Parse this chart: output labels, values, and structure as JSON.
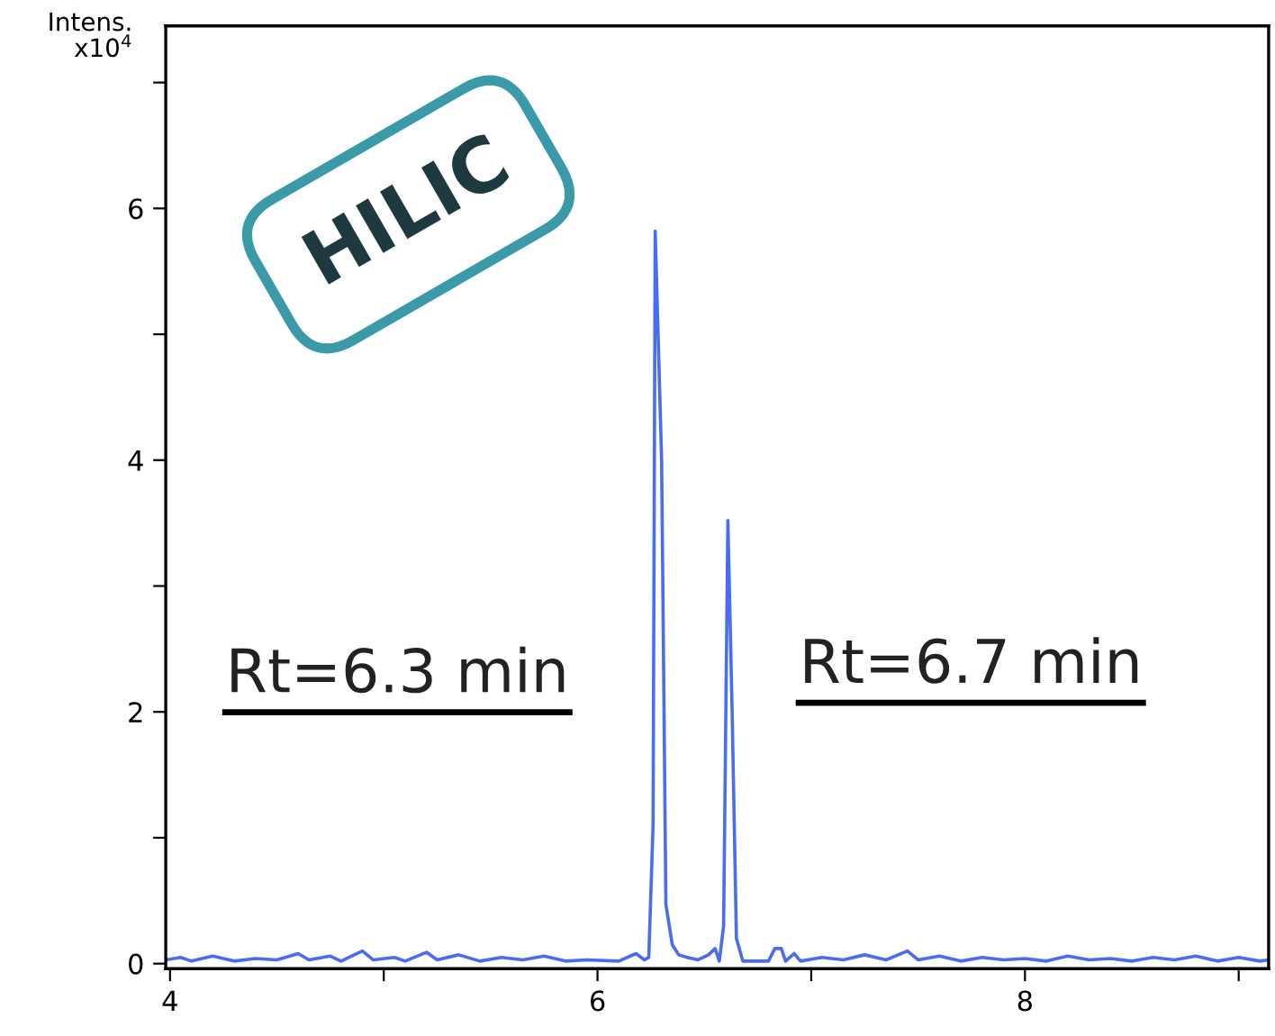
{
  "chart_data": {
    "type": "line",
    "ylabel": "Intens.\nx10$^{4}$",
    "annotations": [
      "HILIC",
      "Rt=6.3 min",
      "Rt=6.7 min"
    ],
    "x": [
      3.98,
      4.05,
      4.1,
      4.2,
      4.3,
      4.4,
      4.5,
      4.6,
      4.65,
      4.75,
      4.8,
      4.9,
      4.95,
      5.05,
      5.1,
      5.2,
      5.25,
      5.35,
      5.45,
      5.55,
      5.65,
      5.75,
      5.85,
      5.95,
      6.1,
      6.18,
      6.22,
      6.24,
      6.26,
      6.27,
      6.3,
      6.32,
      6.35,
      6.38,
      6.42,
      6.47,
      6.52,
      6.55,
      6.57,
      6.59,
      6.61,
      6.63,
      6.65,
      6.68,
      6.8,
      6.83,
      6.86,
      6.88,
      6.92,
      6.95,
      7.05,
      7.15,
      7.25,
      7.35,
      7.45,
      7.5,
      7.6,
      7.7,
      7.8,
      7.9,
      8.0,
      8.1,
      8.2,
      8.3,
      8.4,
      8.5,
      8.6,
      8.7,
      8.8,
      8.9,
      9.0,
      9.1,
      9.14
    ],
    "series": [
      {
        "color": "#4a6cf0",
        "values": [
          0.03,
          0.05,
          0.02,
          0.06,
          0.02,
          0.04,
          0.03,
          0.08,
          0.03,
          0.06,
          0.02,
          0.1,
          0.03,
          0.05,
          0.02,
          0.09,
          0.03,
          0.07,
          0.02,
          0.05,
          0.03,
          0.06,
          0.02,
          0.03,
          0.02,
          0.08,
          0.03,
          0.05,
          1.1,
          5.82,
          4.0,
          0.47,
          0.15,
          0.07,
          0.05,
          0.03,
          0.07,
          0.12,
          0.02,
          0.3,
          3.52,
          2.0,
          0.2,
          0.02,
          0.02,
          0.12,
          0.12,
          0.02,
          0.08,
          0.02,
          0.05,
          0.03,
          0.07,
          0.03,
          0.1,
          0.03,
          0.06,
          0.02,
          0.05,
          0.03,
          0.04,
          0.02,
          0.06,
          0.03,
          0.04,
          0.02,
          0.05,
          0.03,
          0.06,
          0.02,
          0.05,
          0.02,
          0.03
        ]
      }
    ],
    "xlim": [
      3.98,
      9.14
    ],
    "xticks": [
      4,
      {
        "value": 5,
        "label": null
      },
      6,
      {
        "value": 7,
        "label": null
      },
      8,
      {
        "value": 9,
        "label": null
      }
    ],
    "ylim": [
      -0.04,
      7.45
    ],
    "yticks": [
      0,
      {
        "value": 1,
        "label": null
      },
      2,
      {
        "value": 3,
        "label": null
      },
      4,
      {
        "value": 5,
        "label": null
      },
      6,
      {
        "value": 7,
        "label": null
      }
    ],
    "grid": false,
    "legend": false,
    "marker": "none",
    "line_style": "solid"
  }
}
